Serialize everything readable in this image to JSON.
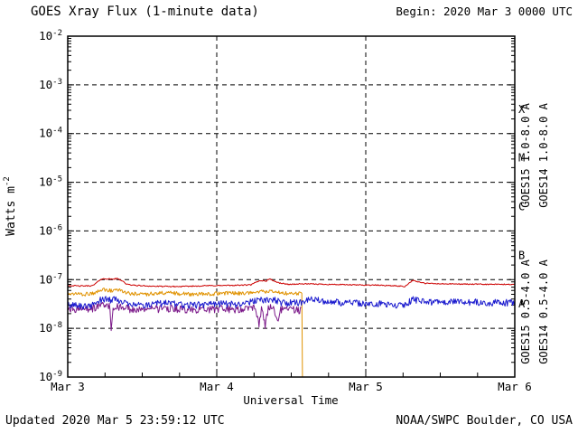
{
  "header": {
    "title": "GOES Xray Flux (1-minute data)",
    "begin_label": "Begin: 2020 Mar 3 0000 UTC",
    "begin_color": "#cc0000"
  },
  "footer": {
    "updated": "Updated 2020 Mar 5 23:59:12 UTC",
    "source": "NOAA/SWPC Boulder, CO USA"
  },
  "chart_data": {
    "type": "line",
    "title": "GOES Xray Flux (1-minute data)",
    "x_axis": {
      "label": "Universal Time",
      "range_hours": [
        0,
        72
      ],
      "tick_hours": [
        0,
        24,
        48,
        72
      ],
      "tick_labels": [
        "Mar 3",
        "Mar 4",
        "Mar 5",
        "Mar 6"
      ],
      "minor_tick_step_hours": 6,
      "gridline_hours": [
        24,
        48
      ]
    },
    "y_axis": {
      "label_base": "Watts m",
      "label_exp": "-2",
      "tick_base": "10",
      "tick_exponents": [
        -2,
        -3,
        -4,
        -5,
        -6,
        -7,
        -8,
        -9
      ],
      "grid_exponents": [
        -3,
        -4,
        -5,
        -6,
        -7,
        -8
      ],
      "log_range": [
        -9,
        -2
      ]
    },
    "flare_classes": [
      {
        "label": "X",
        "mid_exp": -3.5
      },
      {
        "label": "M",
        "mid_exp": -4.5
      },
      {
        "label": "C",
        "mid_exp": -5.5
      },
      {
        "label": "B",
        "mid_exp": -6.5
      },
      {
        "label": "A",
        "mid_exp": -7.5
      }
    ],
    "series": [
      {
        "name": "GOES15 1.0-8.0 A",
        "color": "#cc0000",
        "noise": 0.025,
        "points": [
          [
            0,
            7.6e-08
          ],
          [
            2,
            7.4e-08
          ],
          [
            4,
            7.5e-08
          ],
          [
            4.6,
            8.5e-08
          ],
          [
            5.2,
            1e-07
          ],
          [
            6,
            1.05e-07
          ],
          [
            7,
            1.02e-07
          ],
          [
            8,
            1.05e-07
          ],
          [
            8.8,
            9.5e-08
          ],
          [
            9.5,
            8e-08
          ],
          [
            11,
            7.6e-08
          ],
          [
            14,
            7.3e-08
          ],
          [
            18,
            7.2e-08
          ],
          [
            22,
            7.5e-08
          ],
          [
            26,
            7.6e-08
          ],
          [
            29.5,
            7.8e-08
          ],
          [
            30.3,
            8.8e-08
          ],
          [
            31,
            9.6e-08
          ],
          [
            32,
            9.4e-08
          ],
          [
            32.6,
            1.06e-07
          ],
          [
            33,
            9.6e-08
          ],
          [
            34,
            8.6e-08
          ],
          [
            35.5,
            8e-08
          ],
          [
            38,
            8.2e-08
          ],
          [
            42,
            8e-08
          ],
          [
            46,
            7.8e-08
          ],
          [
            50,
            7.7e-08
          ],
          [
            53.5,
            7.4e-08
          ],
          [
            54.3,
            7.2e-08
          ],
          [
            54.8,
            8.2e-08
          ],
          [
            55.5,
            9.6e-08
          ],
          [
            56.2,
            9.2e-08
          ],
          [
            57.5,
            8.4e-08
          ],
          [
            60,
            8.2e-08
          ],
          [
            64,
            8.1e-08
          ],
          [
            68,
            8e-08
          ],
          [
            72,
            8e-08
          ]
        ]
      },
      {
        "name": "GOES14 1.0-8.0 A",
        "color": "#e09200",
        "noise": 0.09,
        "points": [
          [
            0,
            5.2e-08
          ],
          [
            2,
            5e-08
          ],
          [
            4,
            5.2e-08
          ],
          [
            5,
            6e-08
          ],
          [
            6,
            6.2e-08
          ],
          [
            7,
            6e-08
          ],
          [
            8,
            6.2e-08
          ],
          [
            9,
            5.6e-08
          ],
          [
            10,
            5.2e-08
          ],
          [
            12,
            5e-08
          ],
          [
            14,
            5.2e-08
          ],
          [
            16,
            5.4e-08
          ],
          [
            18,
            5.2e-08
          ],
          [
            20,
            5e-08
          ],
          [
            22,
            5.1e-08
          ],
          [
            24,
            5.2e-08
          ],
          [
            26,
            5.3e-08
          ],
          [
            28,
            5.2e-08
          ],
          [
            30,
            5.5e-08
          ],
          [
            31,
            5.8e-08
          ],
          [
            32,
            5.6e-08
          ],
          [
            33,
            5.8e-08
          ],
          [
            34,
            5.4e-08
          ],
          [
            35,
            5.2e-08
          ],
          [
            36,
            5.3e-08
          ],
          [
            37,
            5.2e-08
          ],
          [
            37.7,
            5.2e-08
          ],
          [
            37.8,
            1e-09
          ]
        ]
      },
      {
        "name": "GOES15 0.5-4.0 A",
        "color": "#1a1ace",
        "noise": 0.16,
        "points": [
          [
            0,
            3e-08
          ],
          [
            2,
            2.9e-08
          ],
          [
            4,
            3e-08
          ],
          [
            5,
            3.8e-08
          ],
          [
            6,
            4e-08
          ],
          [
            7,
            3.8e-08
          ],
          [
            8,
            4e-08
          ],
          [
            9,
            3.4e-08
          ],
          [
            10,
            3.1e-08
          ],
          [
            12,
            3e-08
          ],
          [
            14,
            3.2e-08
          ],
          [
            16,
            3.3e-08
          ],
          [
            18,
            3.1e-08
          ],
          [
            20,
            3e-08
          ],
          [
            22,
            3.1e-08
          ],
          [
            24,
            3.2e-08
          ],
          [
            26,
            3.2e-08
          ],
          [
            28,
            3.1e-08
          ],
          [
            30,
            3.6e-08
          ],
          [
            31,
            4e-08
          ],
          [
            32,
            3.8e-08
          ],
          [
            33,
            4e-08
          ],
          [
            34,
            3.5e-08
          ],
          [
            35,
            3.3e-08
          ],
          [
            36,
            3.4e-08
          ],
          [
            37,
            3.3e-08
          ],
          [
            38,
            3.6e-08
          ],
          [
            39,
            4e-08
          ],
          [
            40,
            3.9e-08
          ],
          [
            42,
            3.6e-08
          ],
          [
            44,
            3.4e-08
          ],
          [
            46,
            3.3e-08
          ],
          [
            48,
            3.2e-08
          ],
          [
            50,
            3.2e-08
          ],
          [
            52,
            3.1e-08
          ],
          [
            54,
            3e-08
          ],
          [
            54.8,
            3.4e-08
          ],
          [
            55.5,
            4e-08
          ],
          [
            56.5,
            3.7e-08
          ],
          [
            58,
            3.5e-08
          ],
          [
            60,
            3.5e-08
          ],
          [
            64,
            3.5e-08
          ],
          [
            68,
            3.4e-08
          ],
          [
            72,
            3.4e-08
          ]
        ]
      },
      {
        "name": "GOES14 0.5-4.0 A",
        "color": "#7c1a8a",
        "noise": 0.18,
        "points": [
          [
            0,
            2.6e-08
          ],
          [
            2,
            2.5e-08
          ],
          [
            4,
            2.6e-08
          ],
          [
            5,
            3e-08
          ],
          [
            6,
            3e-08
          ],
          [
            6.8,
            2.8e-08
          ],
          [
            7.0,
            9e-09
          ],
          [
            7.3,
            2.6e-08
          ],
          [
            8,
            2.8e-08
          ],
          [
            9,
            2.6e-08
          ],
          [
            10,
            2.5e-08
          ],
          [
            12,
            2.4e-08
          ],
          [
            14,
            2.5e-08
          ],
          [
            16,
            2.6e-08
          ],
          [
            18,
            2.5e-08
          ],
          [
            20,
            2.4e-08
          ],
          [
            22,
            2.5e-08
          ],
          [
            24,
            2.5e-08
          ],
          [
            26,
            2.5e-08
          ],
          [
            28,
            2.5e-08
          ],
          [
            30,
            2.7e-08
          ],
          [
            30.8,
            1.2e-08
          ],
          [
            31.2,
            2.6e-08
          ],
          [
            31.8,
            1.1e-08
          ],
          [
            32.3,
            2.6e-08
          ],
          [
            33,
            2.7e-08
          ],
          [
            33.9,
            1.3e-08
          ],
          [
            34.3,
            2.5e-08
          ],
          [
            35,
            2.5e-08
          ],
          [
            36,
            2.5e-08
          ],
          [
            37,
            2.4e-08
          ],
          [
            37.6,
            2.4e-08
          ]
        ]
      }
    ]
  }
}
